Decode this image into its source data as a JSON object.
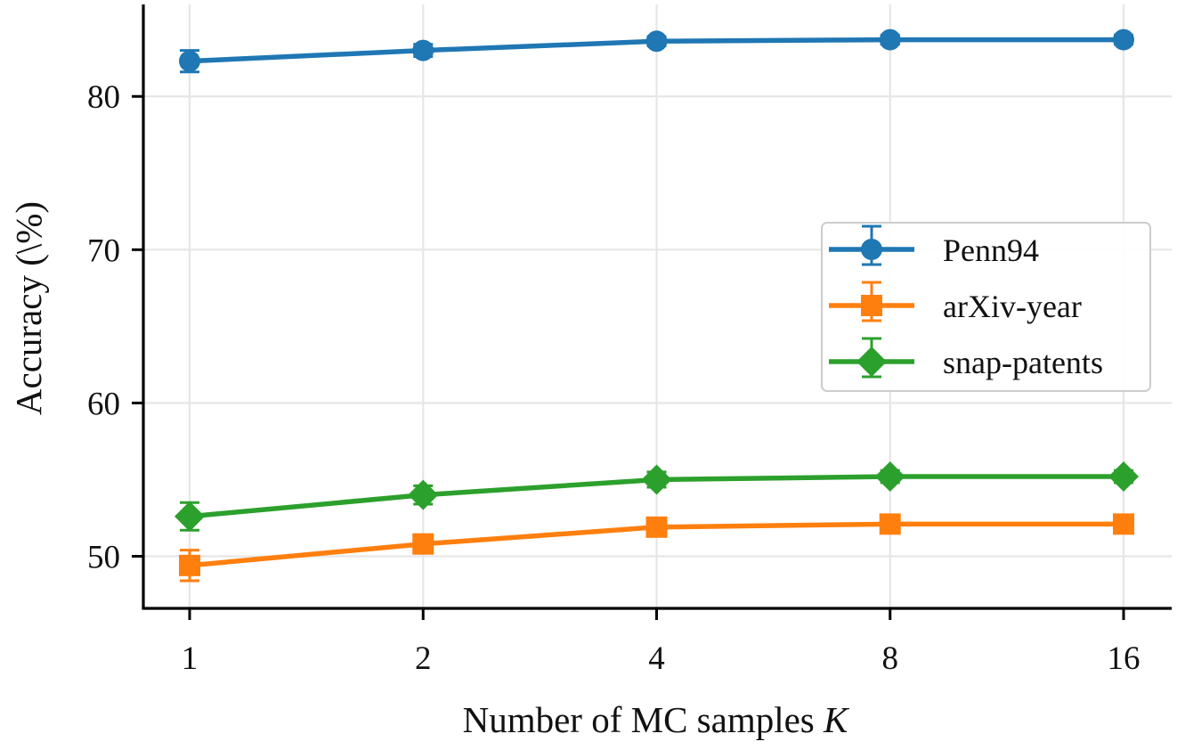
{
  "chart_data": {
    "type": "line",
    "title": "",
    "xlabel": "Number of MC samples",
    "xlabel_var": "K",
    "ylabel": "Accuracy (\\%)",
    "x": [
      1,
      2,
      4,
      8,
      16
    ],
    "x_scale": "log2",
    "x_tick_labels": [
      "1",
      "2",
      "4",
      "8",
      "16"
    ],
    "y_ticks": [
      50,
      60,
      70,
      80
    ],
    "ylim": [
      46.6,
      86.0
    ],
    "grid": true,
    "legend_position": "center-right",
    "series": [
      {
        "name": "Penn94",
        "color": "#1f77b4",
        "marker": "circle",
        "values": [
          82.3,
          83.0,
          83.6,
          83.7,
          83.7
        ],
        "errors": [
          0.7,
          0.4,
          0.3,
          0.3,
          0.3
        ]
      },
      {
        "name": "arXiv-year",
        "color": "#ff7f0e",
        "marker": "square",
        "values": [
          49.4,
          50.8,
          51.9,
          52.1,
          52.1
        ],
        "errors": [
          1.0,
          0.6,
          0.5,
          0.5,
          0.5
        ]
      },
      {
        "name": "snap-patents",
        "color": "#2ca02c",
        "marker": "diamond",
        "values": [
          52.6,
          54.0,
          55.0,
          55.2,
          55.2
        ],
        "errors": [
          0.9,
          0.6,
          0.5,
          0.4,
          0.4
        ]
      }
    ]
  }
}
